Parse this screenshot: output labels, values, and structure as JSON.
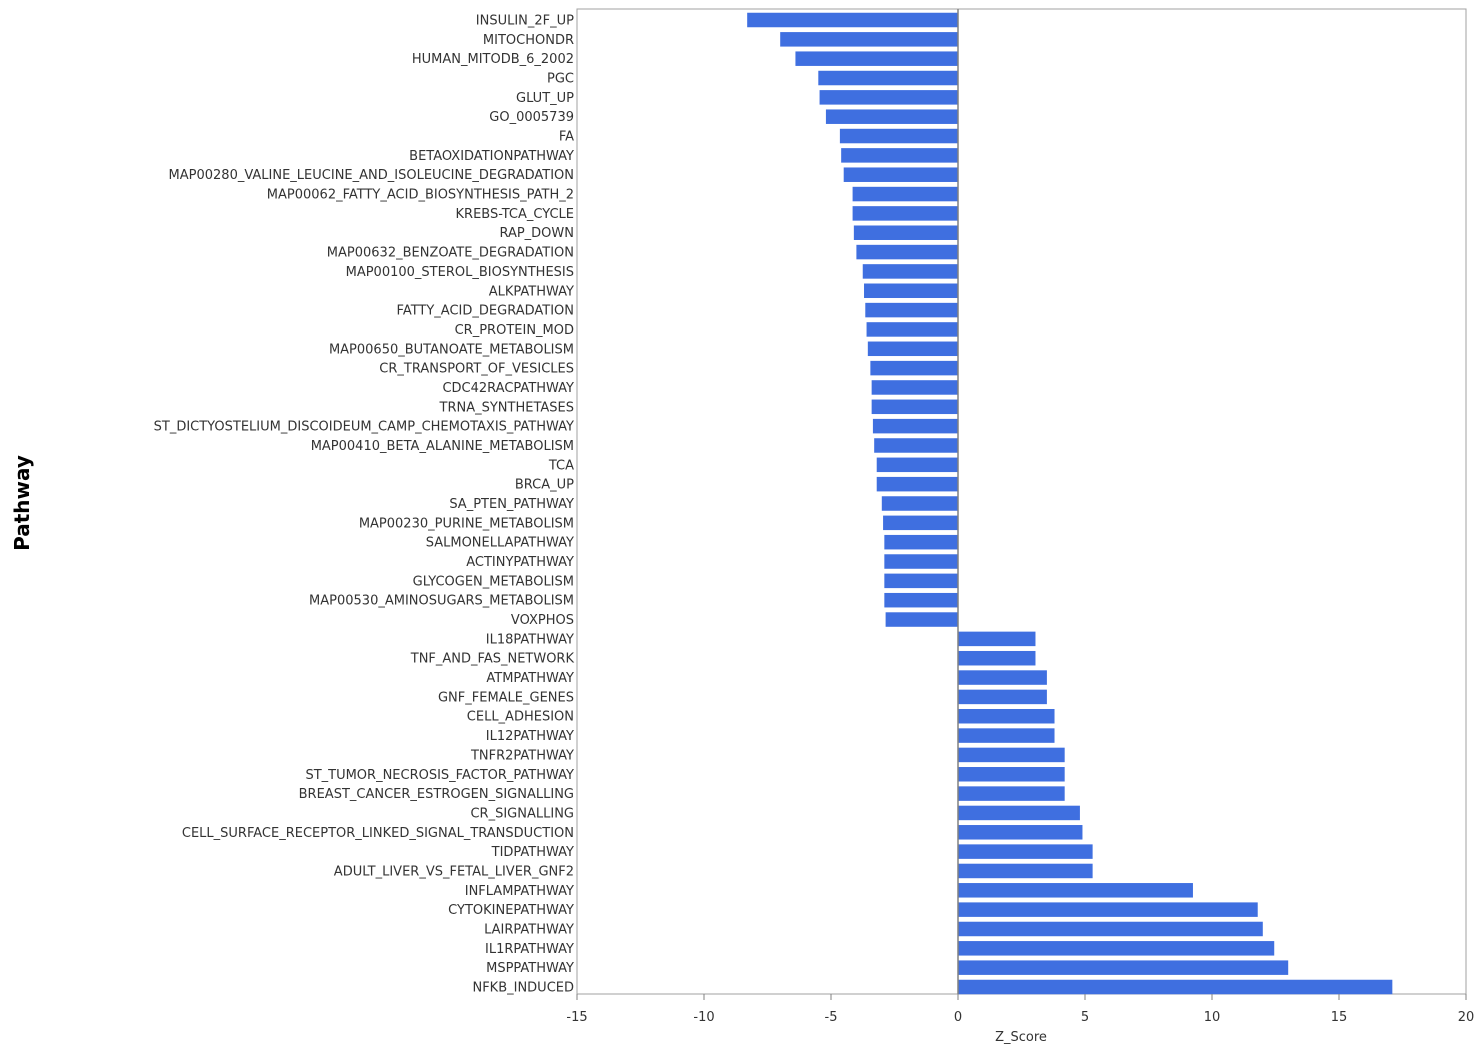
{
  "chart_data": {
    "type": "bar",
    "orientation": "horizontal",
    "title": "",
    "xlabel": "Z_Score",
    "ylabel": "Pathway",
    "xlim": [
      -15,
      20
    ],
    "xticks": [
      -15,
      -10,
      -5,
      0,
      5,
      10,
      15,
      20
    ],
    "xtick_labels": [
      "-15",
      "-10",
      "-5",
      "0",
      "5",
      "10",
      "15",
      "20"
    ],
    "grid": false,
    "legend": "none",
    "bar_color": "#3F6FE0",
    "categories": [
      "INSULIN_2F_UP",
      "MITOCHONDR",
      "HUMAN_MITODB_6_2002",
      "PGC",
      "GLUT_UP",
      "GO_0005739",
      "FA",
      "BETAOXIDATIONPATHWAY",
      "MAP00280_VALINE_LEUCINE_AND_ISOLEUCINE_DEGRADATION",
      "MAP00062_FATTY_ACID_BIOSYNTHESIS_PATH_2",
      "KREBS-TCA_CYCLE",
      "RAP_DOWN",
      "MAP00632_BENZOATE_DEGRADATION",
      "MAP00100_STEROL_BIOSYNTHESIS",
      "ALKPATHWAY",
      "FATTY_ACID_DEGRADATION",
      "CR_PROTEIN_MOD",
      "MAP00650_BUTANOATE_METABOLISM",
      "CR_TRANSPORT_OF_VESICLES",
      "CDC42RACPATHWAY",
      "TRNA_SYNTHETASES",
      "ST_DICTYOSTELIUM_DISCOIDEUM_CAMP_CHEMOTAXIS_PATHWAY",
      "MAP00410_BETA_ALANINE_METABOLISM",
      "TCA",
      "BRCA_UP",
      "SA_PTEN_PATHWAY",
      "MAP00230_PURINE_METABOLISM",
      "SALMONELLAPATHWAY",
      "ACTINYPATHWAY",
      "GLYCOGEN_METABOLISM",
      "MAP00530_AMINOSUGARS_METABOLISM",
      "VOXPHOS",
      "IL18PATHWAY",
      "TNF_AND_FAS_NETWORK",
      "ATMPATHWAY",
      "GNF_FEMALE_GENES",
      "CELL_ADHESION",
      "IL12PATHWAY",
      "TNFR2PATHWAY",
      "ST_TUMOR_NECROSIS_FACTOR_PATHWAY",
      "BREAST_CANCER_ESTROGEN_SIGNALLING",
      "CR_SIGNALLING",
      "CELL_SURFACE_RECEPTOR_LINKED_SIGNAL_TRANSDUCTION",
      "TIDPATHWAY",
      "ADULT_LIVER_VS_FETAL_LIVER_GNF2",
      "INFLAMPATHWAY",
      "CYTOKINEPATHWAY",
      "LAIRPATHWAY",
      "IL1RPATHWAY",
      "MSPPATHWAY",
      "NFKB_INDUCED"
    ],
    "values": [
      -8.3,
      -7.0,
      -6.4,
      -5.5,
      -5.45,
      -5.2,
      -4.65,
      -4.6,
      -4.5,
      -4.15,
      -4.15,
      -4.1,
      -4.0,
      -3.75,
      -3.7,
      -3.65,
      -3.6,
      -3.55,
      -3.45,
      -3.4,
      -3.4,
      -3.35,
      -3.3,
      -3.2,
      -3.2,
      -3.0,
      -2.95,
      -2.9,
      -2.9,
      -2.9,
      -2.9,
      -2.85,
      3.05,
      3.05,
      3.5,
      3.5,
      3.8,
      3.8,
      4.2,
      4.2,
      4.2,
      4.8,
      4.9,
      5.3,
      5.3,
      9.25,
      11.8,
      12.0,
      12.45,
      13.0,
      17.1
    ]
  }
}
